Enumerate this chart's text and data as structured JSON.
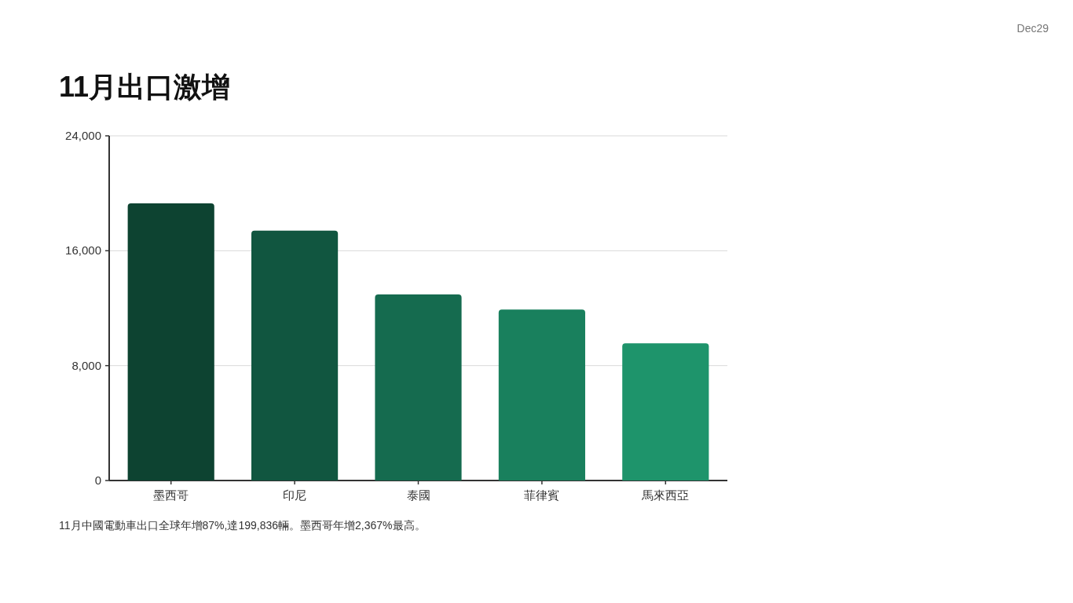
{
  "chart_data": {
    "type": "bar",
    "title": "11月出口激增",
    "categories": [
      "墨西哥",
      "印尼",
      "泰國",
      "菲律賓",
      "馬來西亞"
    ],
    "values": [
      19300,
      17400,
      12950,
      11900,
      9550
    ],
    "colors": [
      "#0d4331",
      "#115640",
      "#156b4f",
      "#19805d",
      "#1e946b"
    ],
    "ylim": [
      0,
      24000
    ],
    "yticks": [
      0,
      {
        "value": 8000,
        "label": "8,000"
      },
      {
        "value": 16000,
        "label": "16,000"
      },
      {
        "value": 24000,
        "label": "24,000"
      }
    ],
    "grid": "y",
    "annotations": [
      "11月中國電動車出口全球年增87%,達199,836輛。墨西哥年增2,367%最高。",
      "Dec29"
    ]
  }
}
